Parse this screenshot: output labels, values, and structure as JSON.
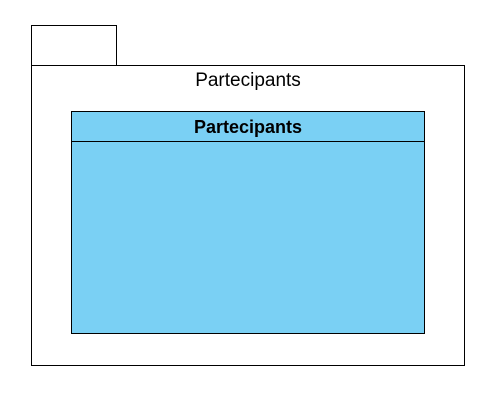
{
  "package": {
    "title": "Partecipants"
  },
  "class_box": {
    "title": "Partecipants"
  },
  "colors": {
    "class_fill": "#7ad0f4",
    "stroke": "#000000",
    "background": "#ffffff"
  }
}
